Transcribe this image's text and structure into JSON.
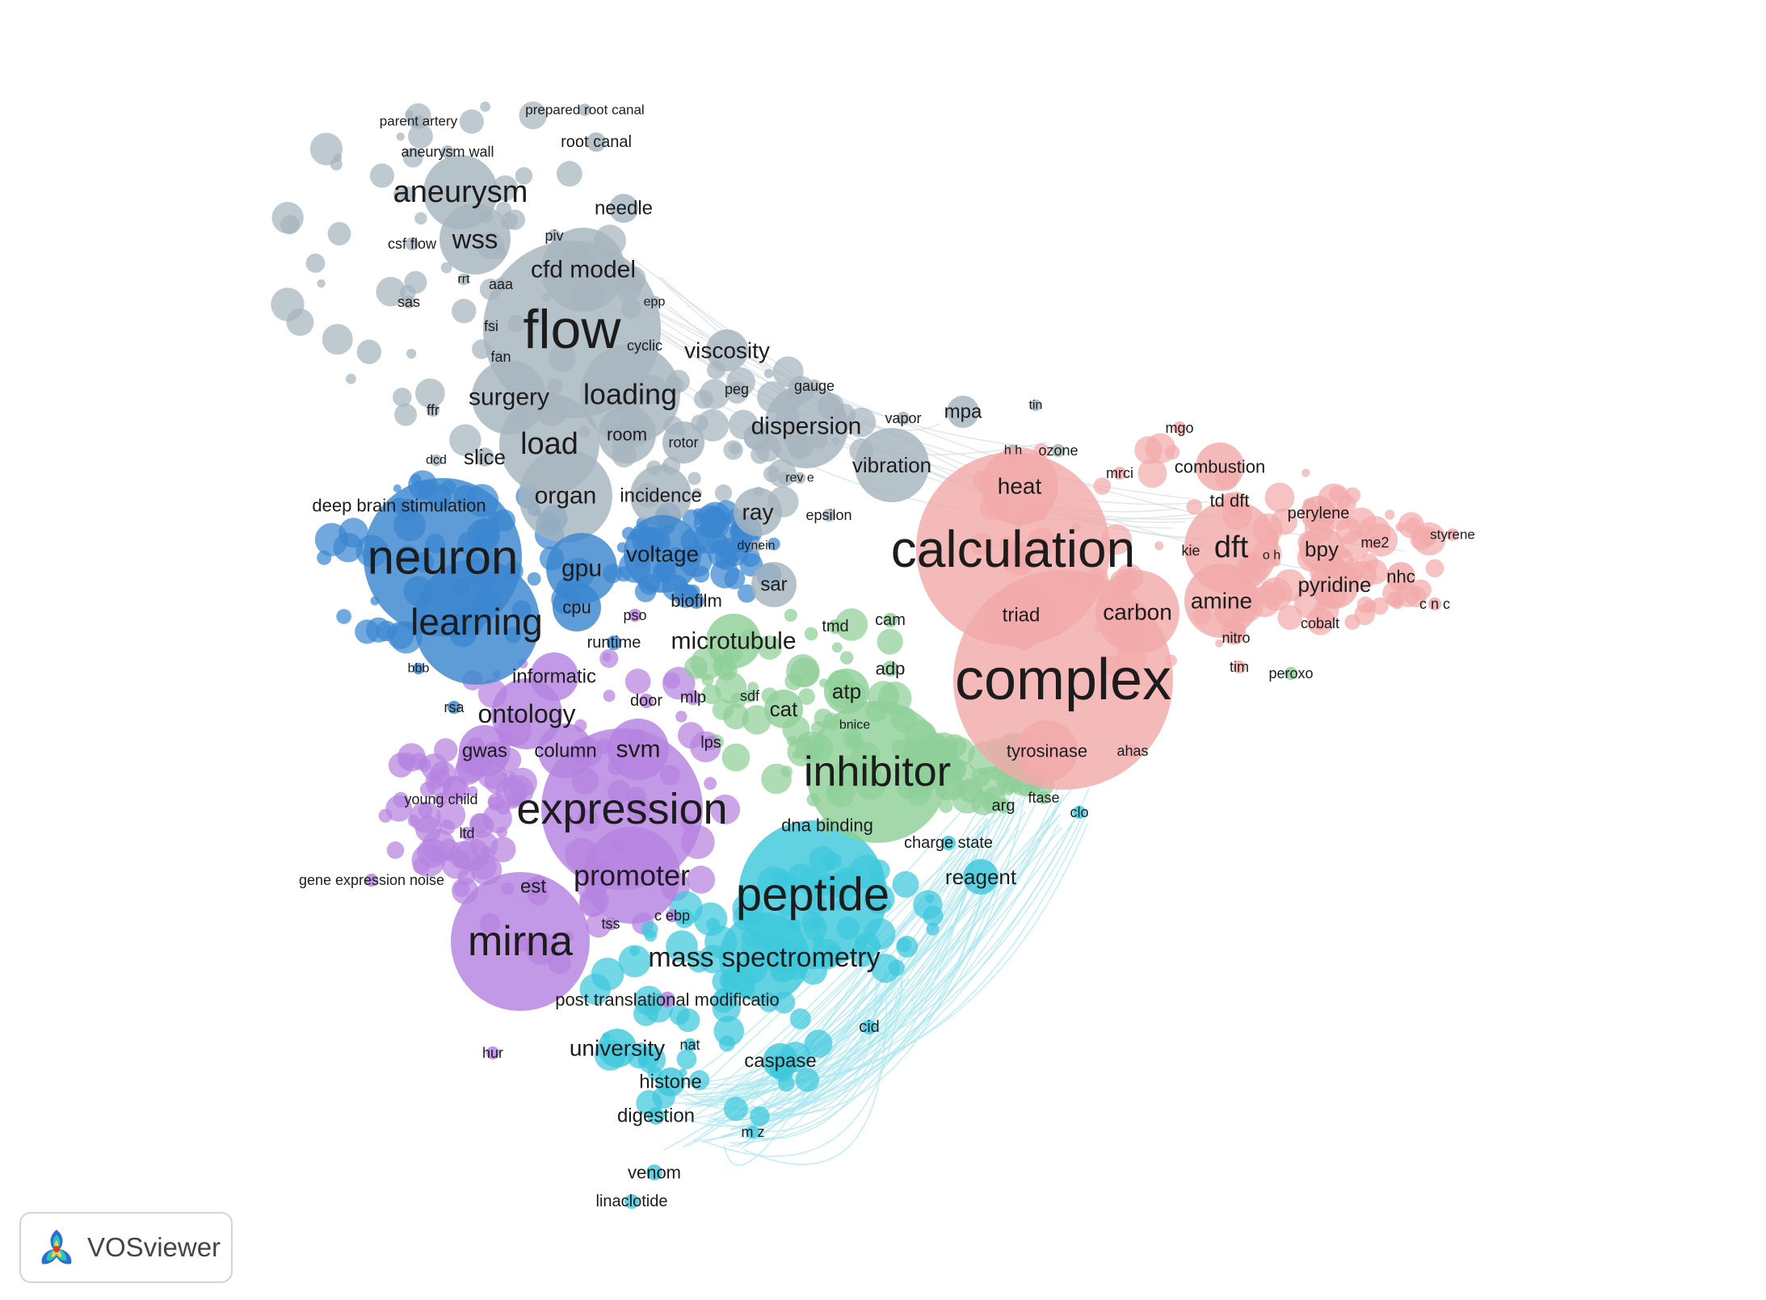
{
  "app": {
    "name": "VOSviewer"
  },
  "palette": {
    "gray": "#a6b4be",
    "blue": "#3a86d0",
    "red": "#f2aaaa",
    "green": "#8fcf98",
    "purple": "#b583e0",
    "cyan": "#3ec8dc",
    "link_cyan": "#a9e7f0",
    "link_gray": "#d6dde2"
  },
  "clusters": [
    {
      "id": "gray",
      "items": [
        [
          "flow",
          68
        ],
        [
          "aneurysm",
          38
        ],
        [
          "wss",
          33
        ],
        [
          "cfd model",
          30
        ],
        [
          "loading",
          36
        ],
        [
          "load",
          38
        ],
        [
          "surgery",
          30
        ],
        [
          "viscosity",
          28
        ],
        [
          "dispersion",
          30
        ],
        [
          "vibration",
          26
        ],
        [
          "organ",
          30
        ],
        [
          "incidence",
          24
        ],
        [
          "slice",
          26
        ],
        [
          "room",
          22
        ],
        [
          "rotor",
          18
        ],
        [
          "needle",
          24
        ],
        [
          "root canal",
          20
        ],
        [
          "prepared root canal",
          17
        ],
        [
          "parent artery",
          17
        ],
        [
          "aneurysm wall",
          18
        ],
        [
          "csf flow",
          18
        ],
        [
          "piv",
          18
        ],
        [
          "rrt",
          16
        ],
        [
          "aaa",
          18
        ],
        [
          "sas",
          18
        ],
        [
          "epp",
          16
        ],
        [
          "fsi",
          18
        ],
        [
          "fan",
          18
        ],
        [
          "cyclic",
          18
        ],
        [
          "peg",
          18
        ],
        [
          "gauge",
          18
        ],
        [
          "vapor",
          18
        ],
        [
          "ray",
          28
        ],
        [
          "epsilon",
          18
        ],
        [
          "rev e",
          16
        ],
        [
          "dynein",
          16
        ],
        [
          "sar",
          24
        ],
        [
          "ffr",
          18
        ],
        [
          "dcd",
          16
        ],
        [
          "mpa",
          24
        ],
        [
          "tin",
          16
        ],
        [
          "ozone",
          18
        ],
        [
          "h h",
          16
        ]
      ]
    },
    {
      "id": "blue",
      "items": [
        [
          "neuron",
          60
        ],
        [
          "learning",
          46
        ],
        [
          "gpu",
          30
        ],
        [
          "voltage",
          28
        ],
        [
          "cpu",
          22
        ],
        [
          "deep brain stimulation",
          22
        ],
        [
          "biofilm",
          22
        ],
        [
          "runtime",
          20
        ],
        [
          "bbb",
          16
        ],
        [
          "rsa",
          18
        ]
      ]
    },
    {
      "id": "purple",
      "items": [
        [
          "expression",
          54
        ],
        [
          "mirna",
          52
        ],
        [
          "promoter",
          36
        ],
        [
          "ontology",
          32
        ],
        [
          "informatic",
          24
        ],
        [
          "svm",
          30
        ],
        [
          "column",
          24
        ],
        [
          "gwas",
          24
        ],
        [
          "est",
          24
        ],
        [
          "tss",
          18
        ],
        [
          "c ebp",
          18
        ],
        [
          "door",
          20
        ],
        [
          "mlp",
          20
        ],
        [
          "lps",
          20
        ],
        [
          "pso",
          18
        ],
        [
          "young child",
          18
        ],
        [
          "ltd",
          18
        ],
        [
          "gene expression noise",
          18
        ],
        [
          "hur",
          18
        ],
        [
          "post translational modificatio",
          22
        ]
      ]
    },
    {
      "id": "cyan",
      "items": [
        [
          "peptide",
          58
        ],
        [
          "mass spectrometry",
          34
        ],
        [
          "university",
          28
        ],
        [
          "nat",
          18
        ],
        [
          "caspase",
          24
        ],
        [
          "histone",
          24
        ],
        [
          "digestion",
          24
        ],
        [
          "m z",
          18
        ],
        [
          "venom",
          22
        ],
        [
          "linaclotide",
          20
        ],
        [
          "cid",
          20
        ],
        [
          "reagent",
          26
        ],
        [
          "charge state",
          20
        ],
        [
          "clo",
          18
        ]
      ]
    },
    {
      "id": "green",
      "items": [
        [
          "inhibitor",
          52
        ],
        [
          "microtubule",
          30
        ],
        [
          "atp",
          26
        ],
        [
          "cat",
          26
        ],
        [
          "sdf",
          18
        ],
        [
          "bnice",
          16
        ],
        [
          "adp",
          22
        ],
        [
          "cam",
          20
        ],
        [
          "tmd",
          20
        ],
        [
          "dna binding",
          22
        ],
        [
          "arg",
          20
        ],
        [
          "ftase",
          18
        ],
        [
          "peroxo",
          18
        ]
      ]
    },
    {
      "id": "red",
      "items": [
        [
          "complex",
          72
        ],
        [
          "calculation",
          64
        ],
        [
          "heat",
          28
        ],
        [
          "dft",
          38
        ],
        [
          "td dft",
          22
        ],
        [
          "carbon",
          28
        ],
        [
          "amine",
          28
        ],
        [
          "triad",
          24
        ],
        [
          "tyrosinase",
          22
        ],
        [
          "ahas",
          18
        ],
        [
          "combustion",
          22
        ],
        [
          "mrci",
          18
        ],
        [
          "mgo",
          18
        ],
        [
          "perylene",
          20
        ],
        [
          "bpy",
          26
        ],
        [
          "me2",
          18
        ],
        [
          "styrene",
          17
        ],
        [
          "pyridine",
          26
        ],
        [
          "nhc",
          22
        ],
        [
          "cobalt",
          18
        ],
        [
          "c n c",
          18
        ],
        [
          "nitro",
          18
        ],
        [
          "tim",
          18
        ],
        [
          "kie",
          18
        ],
        [
          "o h",
          16
        ]
      ]
    }
  ]
}
